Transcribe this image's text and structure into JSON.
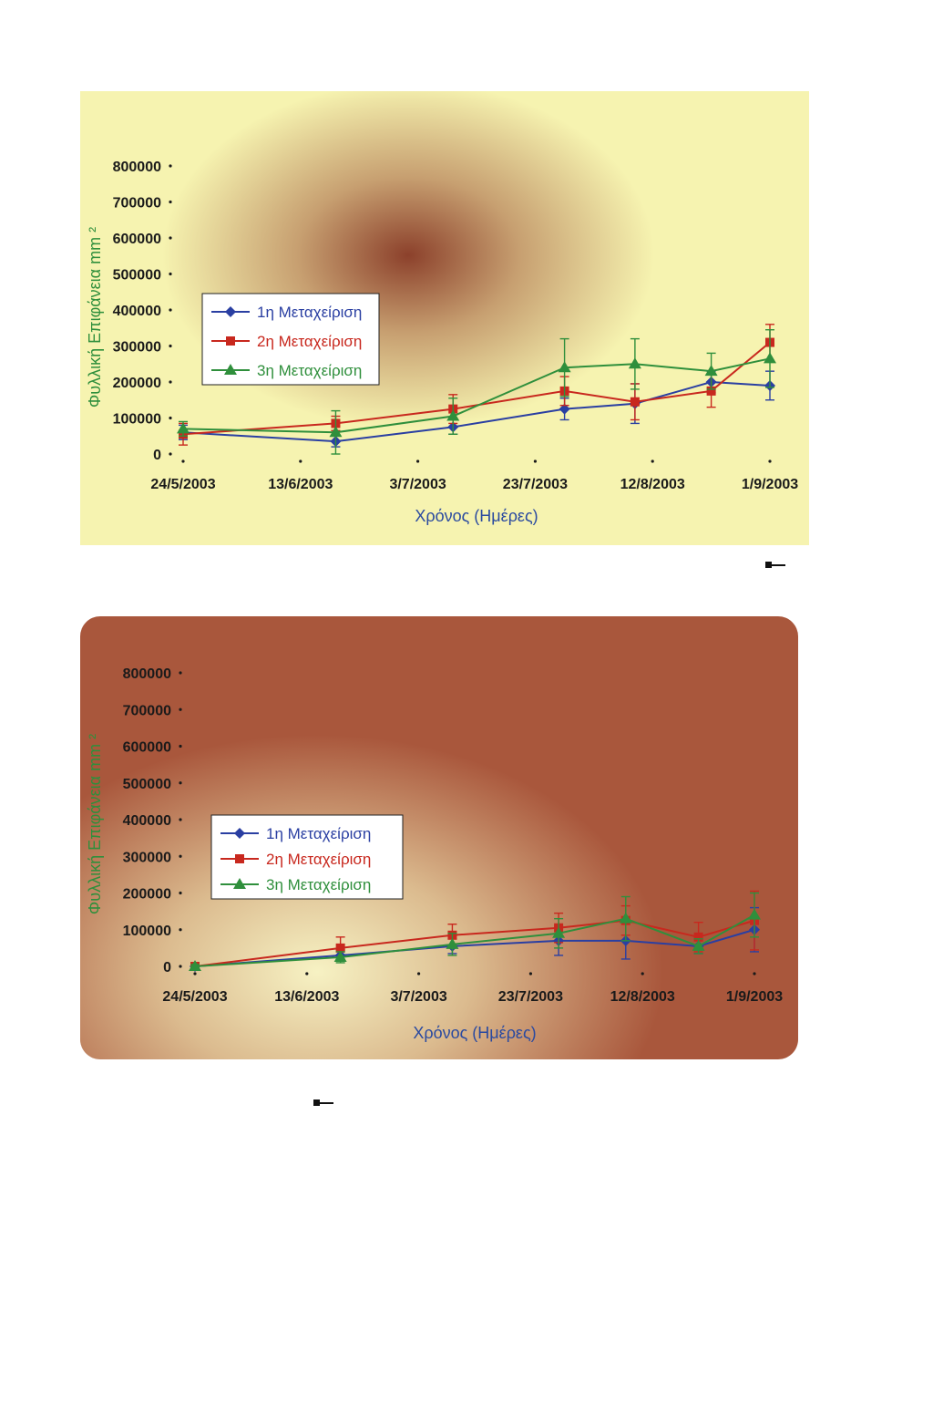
{
  "chart_data": [
    {
      "type": "line",
      "ylabel": "Φυλλική Επιφάνεια mm ²",
      "xlabel": "Χρόνος (Ημέρες)",
      "ylim": [
        0,
        800000
      ],
      "yticks": [
        "0",
        "100000",
        "200000",
        "300000",
        "400000",
        "500000",
        "600000",
        "700000",
        "800000"
      ],
      "xticks": [
        "24/5/2003",
        "13/6/2003",
        "3/7/2003",
        "23/7/2003",
        "12/8/2003",
        "1/9/2003"
      ],
      "legend_position": "upper-left-inside",
      "grid": false,
      "error_bars": true,
      "series": [
        {
          "name": "1η Μεταχείριση",
          "color": "#2a3fa2",
          "marker": "diamond",
          "x": [
            "2003-05-24",
            "2003-06-19",
            "2003-07-09",
            "2003-07-28",
            "2003-08-09",
            "2003-08-22",
            "2003-09-01"
          ],
          "values": [
            60000,
            35000,
            75000,
            125000,
            140000,
            200000,
            190000
          ],
          "errors": [
            20000,
            15000,
            20000,
            30000,
            55000,
            30000,
            40000
          ]
        },
        {
          "name": "2η Μεταχείριση",
          "color": "#c8281e",
          "marker": "square",
          "x": [
            "2003-05-24",
            "2003-06-19",
            "2003-07-09",
            "2003-07-28",
            "2003-08-09",
            "2003-08-22",
            "2003-09-01"
          ],
          "values": [
            55000,
            85000,
            125000,
            175000,
            145000,
            175000,
            310000
          ],
          "errors": [
            30000,
            20000,
            40000,
            40000,
            50000,
            45000,
            50000
          ]
        },
        {
          "name": "3η Μεταχείριση",
          "color": "#2f8f3c",
          "marker": "triangle",
          "x": [
            "2003-05-24",
            "2003-06-19",
            "2003-07-09",
            "2003-07-28",
            "2003-08-09",
            "2003-08-22",
            "2003-09-01"
          ],
          "values": [
            70000,
            60000,
            105000,
            240000,
            250000,
            230000,
            265000
          ],
          "errors": [
            20000,
            60000,
            50000,
            80000,
            70000,
            50000,
            80000
          ]
        }
      ]
    },
    {
      "type": "line",
      "ylabel": "Φυλλική Επιφάνεια mm ²",
      "xlabel": "Χρόνος (Ημέρες)",
      "ylim": [
        0,
        800000
      ],
      "yticks": [
        "0",
        "100000",
        "200000",
        "300000",
        "400000",
        "500000",
        "600000",
        "700000",
        "800000"
      ],
      "xticks": [
        "24/5/2003",
        "13/6/2003",
        "3/7/2003",
        "23/7/2003",
        "12/8/2003",
        "1/9/2003"
      ],
      "legend_position": "middle-left-inside",
      "grid": false,
      "error_bars": true,
      "series": [
        {
          "name": "1η Μεταχείριση",
          "color": "#2a3fa2",
          "marker": "diamond",
          "x": [
            "2003-05-24",
            "2003-06-19",
            "2003-07-09",
            "2003-07-28",
            "2003-08-09",
            "2003-08-22",
            "2003-09-01"
          ],
          "values": [
            0,
            30000,
            55000,
            70000,
            70000,
            55000,
            100000
          ],
          "errors": [
            5000,
            15000,
            20000,
            40000,
            50000,
            20000,
            60000
          ]
        },
        {
          "name": "2η Μεταχείριση",
          "color": "#c8281e",
          "marker": "square",
          "x": [
            "2003-05-24",
            "2003-06-19",
            "2003-07-09",
            "2003-07-28",
            "2003-08-09",
            "2003-08-22",
            "2003-09-01"
          ],
          "values": [
            0,
            50000,
            85000,
            105000,
            125000,
            80000,
            125000
          ],
          "errors": [
            5000,
            30000,
            30000,
            40000,
            40000,
            40000,
            80000
          ]
        },
        {
          "name": "3η Μεταχείριση",
          "color": "#2f8f3c",
          "marker": "triangle",
          "x": [
            "2003-05-24",
            "2003-06-19",
            "2003-07-09",
            "2003-07-28",
            "2003-08-09",
            "2003-08-22",
            "2003-09-01"
          ],
          "values": [
            0,
            25000,
            60000,
            90000,
            130000,
            55000,
            140000
          ],
          "errors": [
            5000,
            15000,
            30000,
            40000,
            60000,
            20000,
            60000
          ]
        }
      ]
    }
  ]
}
